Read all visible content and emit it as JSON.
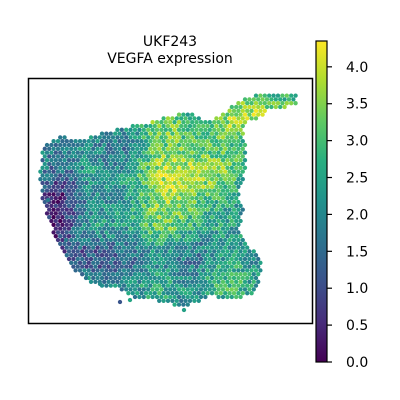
{
  "chart_data": {
    "type": "scatter",
    "title_line1": "UKF243",
    "title_line2": "VEGFA expression",
    "xlabel": "",
    "ylabel": "",
    "grid": false,
    "colormap": "viridis",
    "colorbar": {
      "min": 0.0,
      "max": 4.35,
      "ticks": [
        "0.0",
        "0.5",
        "1.0",
        "1.5",
        "2.0",
        "2.5",
        "3.0",
        "3.5",
        "4.0"
      ]
    }
  }
}
